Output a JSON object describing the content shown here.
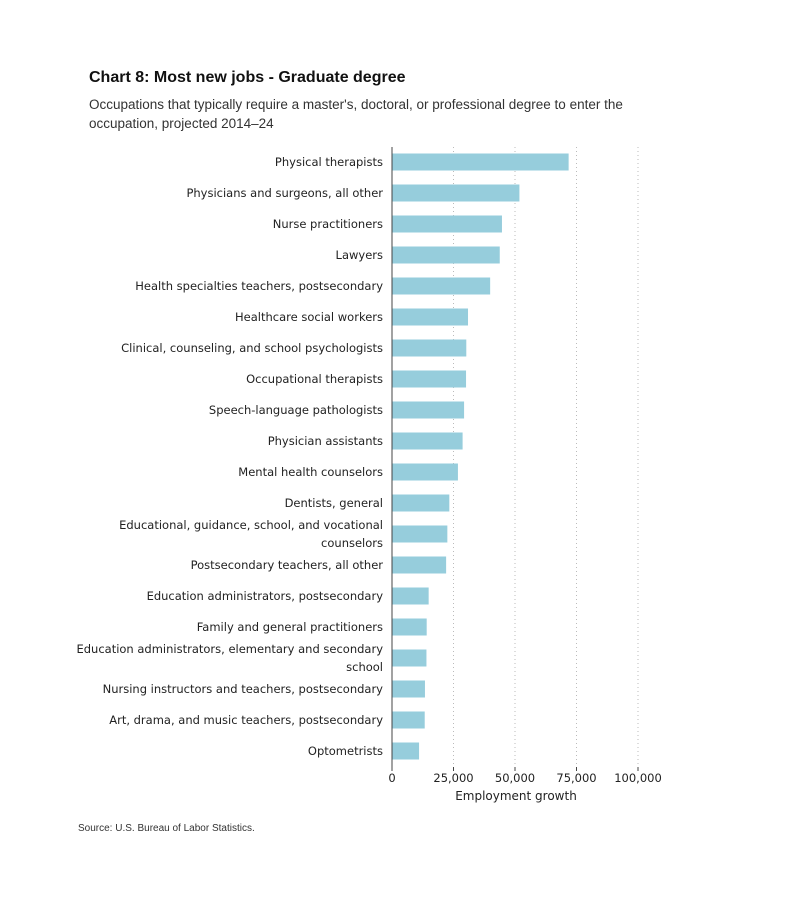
{
  "chart_data": {
    "type": "bar",
    "orientation": "horizontal",
    "title": "Chart 8: Most new jobs - Graduate degree",
    "subtitle": "Occupations that typically require a master's, doctoral, or professional degree to enter the occupation, projected 2014–24",
    "xlabel": "Employment growth",
    "ylabel": "",
    "xlim": [
      0,
      100000
    ],
    "xticks": [
      0,
      25000,
      50000,
      75000,
      100000
    ],
    "xtick_labels": [
      "0",
      "25,000",
      "50,000",
      "75,000",
      "100,000"
    ],
    "grid": "vertical dotted",
    "bar_color": "#96cddc",
    "categories": [
      "Physical therapists",
      "Physicians and surgeons, all other",
      "Nurse practitioners",
      "Lawyers",
      "Health specialties teachers, postsecondary",
      "Healthcare social workers",
      "Clinical, counseling, and school psychologists",
      "Occupational therapists",
      "Speech-language pathologists",
      "Physician assistants",
      "Mental health counselors",
      "Dentists, general",
      "Educational, guidance, school, and vocational counselors",
      "Postsecondary teachers, all other",
      "Education administrators, postsecondary",
      "Family and general practitioners",
      "Education administrators, elementary and secondary school",
      "Nursing instructors and teachers, postsecondary",
      "Art, drama, and music teachers, postsecondary",
      "Optometrists"
    ],
    "category_lines": [
      [
        "Physical therapists"
      ],
      [
        "Physicians and surgeons, all other"
      ],
      [
        "Nurse practitioners"
      ],
      [
        "Lawyers"
      ],
      [
        "Health specialties teachers, postsecondary"
      ],
      [
        "Healthcare social workers"
      ],
      [
        "Clinical, counseling, and school psychologists"
      ],
      [
        "Occupational therapists"
      ],
      [
        "Speech-language pathologists"
      ],
      [
        "Physician assistants"
      ],
      [
        "Mental health counselors"
      ],
      [
        "Dentists, general"
      ],
      [
        "Educational, guidance, school, and vocational",
        "counselors"
      ],
      [
        "Postsecondary teachers, all other"
      ],
      [
        "Education administrators, postsecondary"
      ],
      [
        "Family and general practitioners"
      ],
      [
        "Education administrators, elementary and secondary",
        "school"
      ],
      [
        "Nursing instructors and teachers, postsecondary"
      ],
      [
        "Art, drama, and music teachers, postsecondary"
      ],
      [
        "Optometrists"
      ]
    ],
    "values": [
      71800,
      51800,
      44700,
      43800,
      39900,
      30900,
      30200,
      30100,
      29300,
      28700,
      26800,
      23300,
      22500,
      22000,
      14900,
      14100,
      14000,
      13400,
      13300,
      11000
    ]
  },
  "source": "Source: U.S. Bureau of Labor Statistics."
}
